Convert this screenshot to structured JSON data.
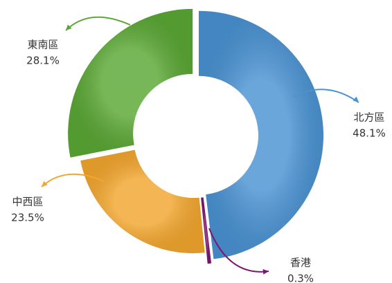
{
  "chart_data": {
    "type": "donut",
    "categories": [
      "北方區",
      "香港",
      "中西區",
      "東南區"
    ],
    "values": [
      48.1,
      0.3,
      23.5,
      28.1
    ],
    "value_labels": [
      "48.1%",
      "0.3%",
      "23.5%",
      "28.1%"
    ],
    "colors": [
      "#4a92d2",
      "#7a1670",
      "#f2a62e",
      "#5aa734"
    ]
  }
}
